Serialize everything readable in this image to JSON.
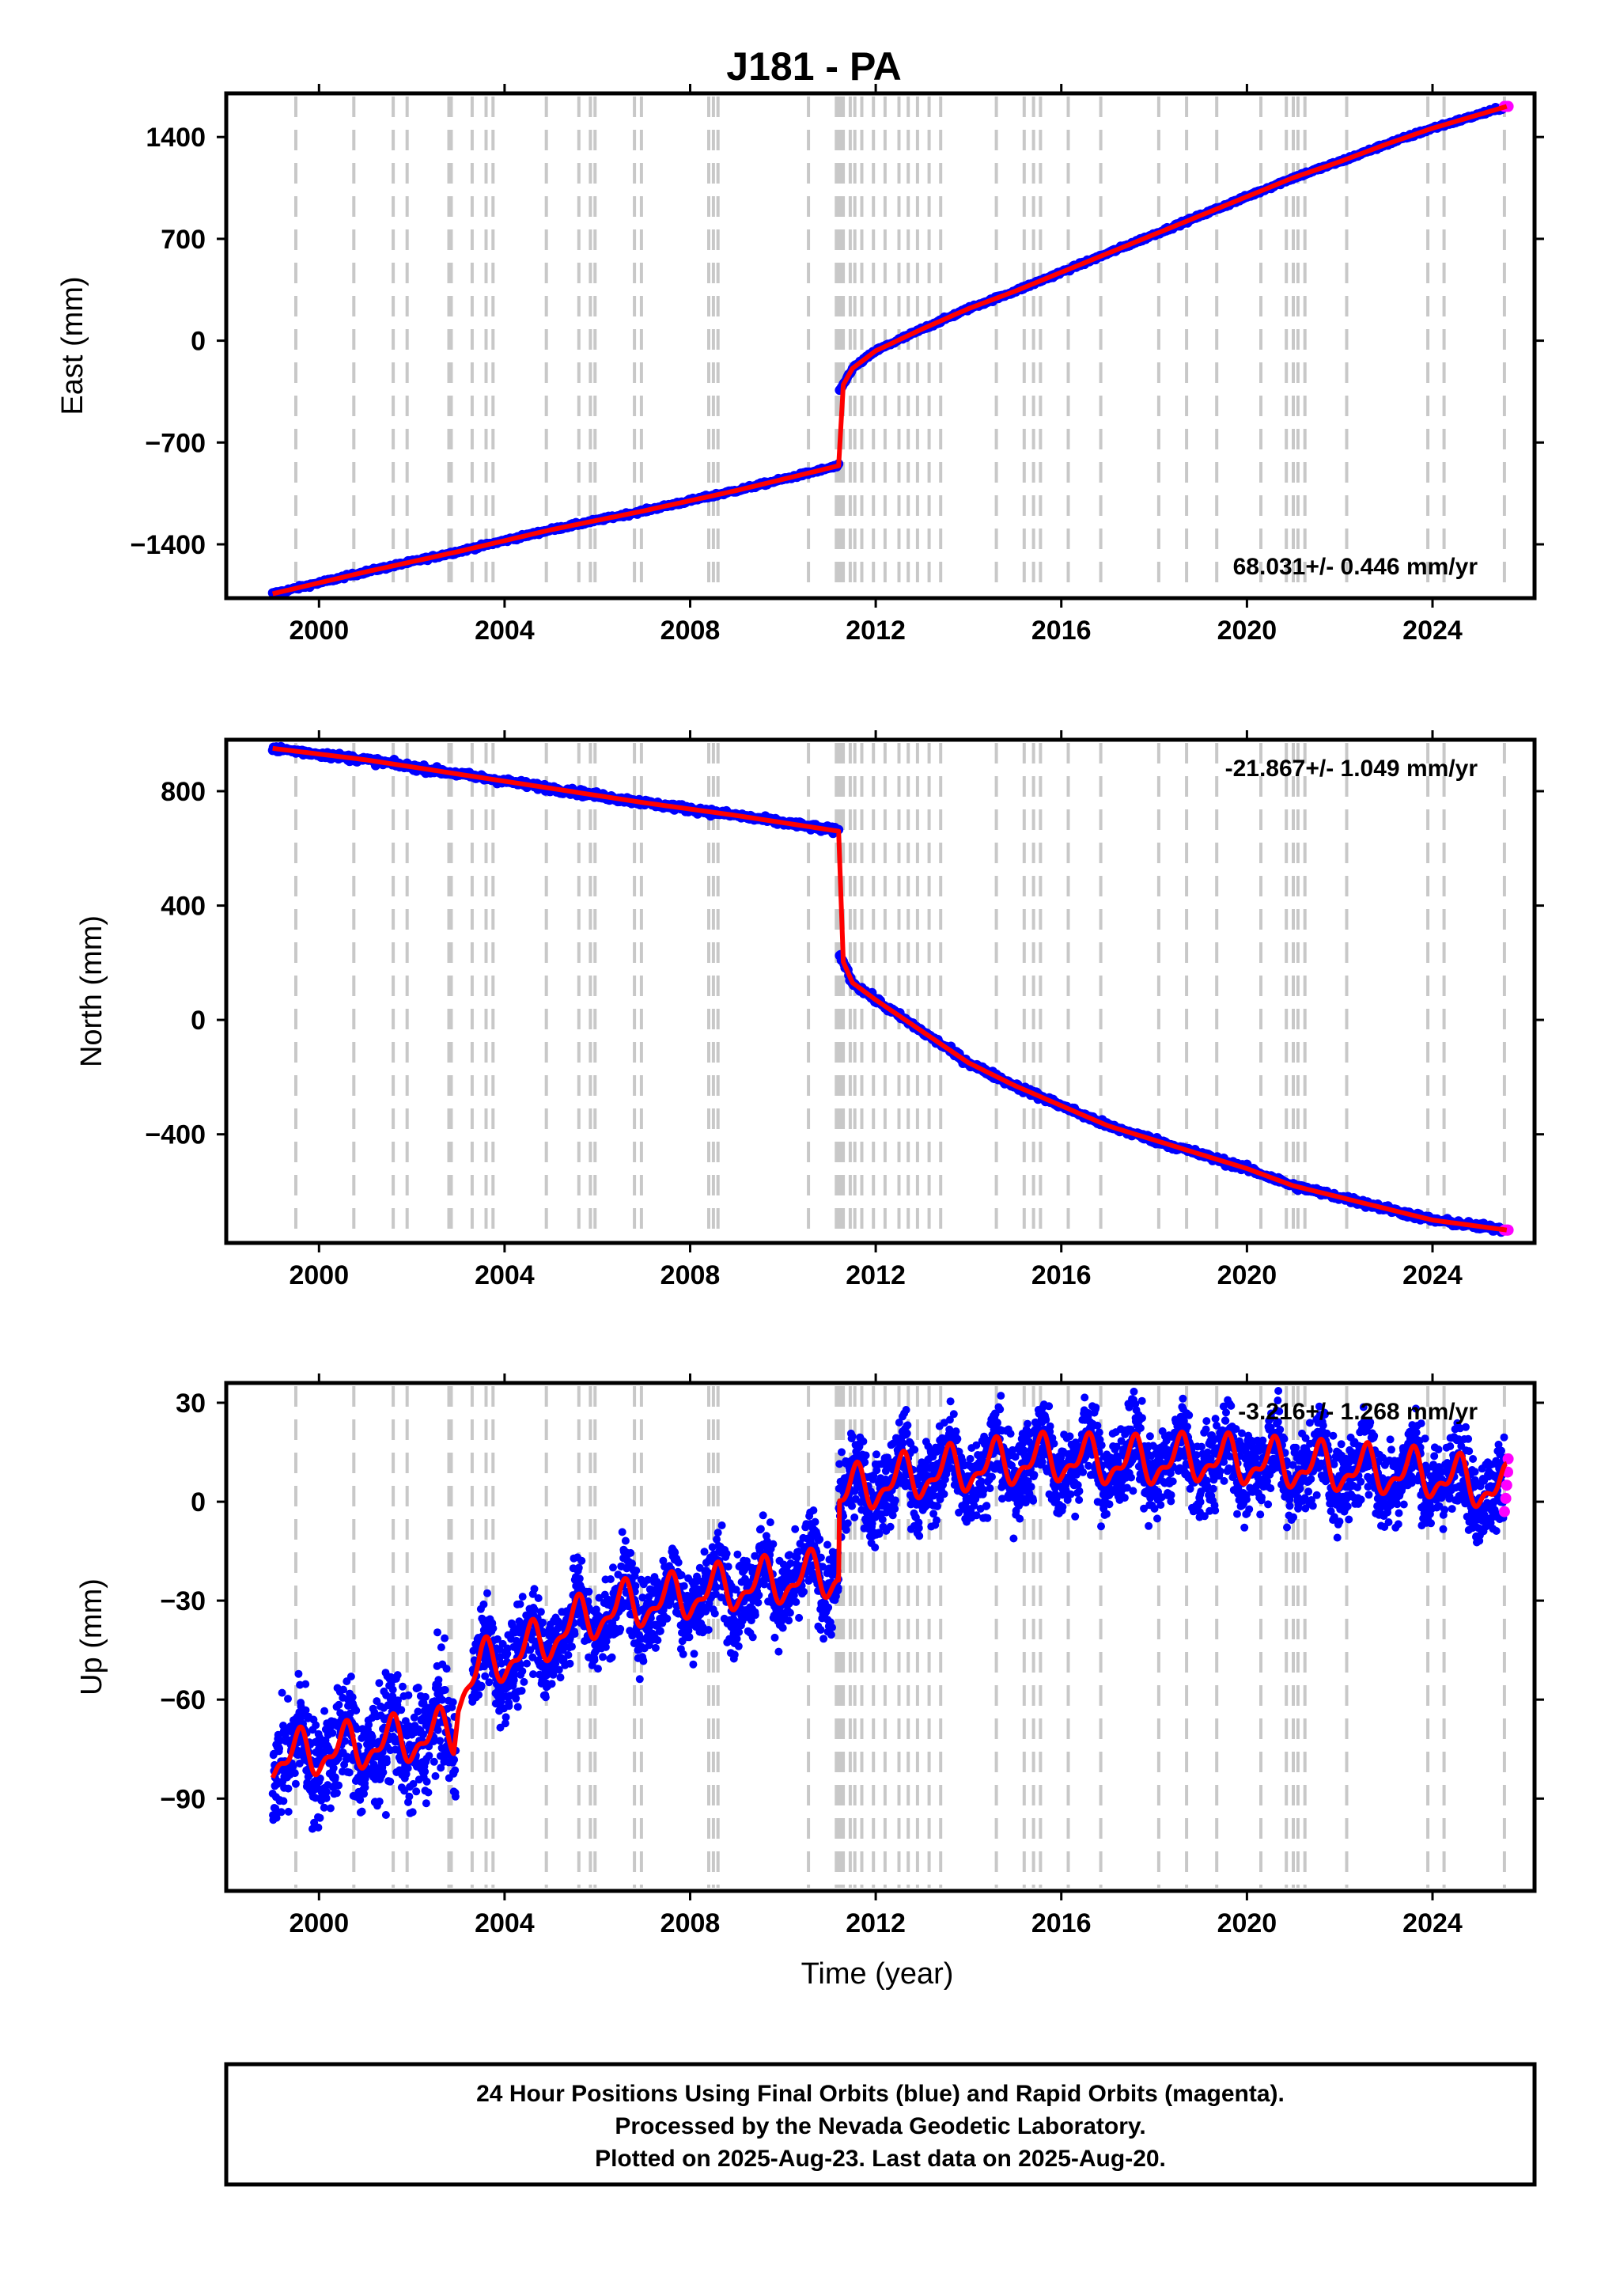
{
  "chart_data": {
    "type": "scatter",
    "title": "J181 - PA",
    "xlabel": "Time (year)",
    "xlim": [
      1998.0,
      2026.2
    ],
    "x_ticks": [
      "2000",
      "2004",
      "2008",
      "2012",
      "2016",
      "2020",
      "2024"
    ],
    "x_tick_values": [
      2000,
      2004,
      2008,
      2012,
      2016,
      2020,
      2024
    ],
    "grid": false,
    "series_colors": {
      "final_orbits": "#0000ff",
      "rapid_orbits": "#ff00ff",
      "model": "#ff0000",
      "steps": "#c8c8c8"
    },
    "step_epochs": [
      1999.5,
      2000.75,
      2001.6,
      2001.9,
      2002.8,
      2002.85,
      2003.3,
      2003.6,
      2003.75,
      2004.9,
      2005.6,
      2005.85,
      2005.95,
      2006.8,
      2006.95,
      2008.4,
      2008.5,
      2008.6,
      2010.55,
      2011.15,
      2011.2,
      2011.25,
      2011.3,
      2011.45,
      2011.55,
      2011.7,
      2011.95,
      2012.2,
      2012.5,
      2012.7,
      2012.9,
      2013.15,
      2013.4,
      2014.6,
      2015.2,
      2015.4,
      2015.55,
      2016.15,
      2016.85,
      2018.1,
      2018.7,
      2019.35,
      2020.3,
      2020.85,
      2021.0,
      2021.1,
      2021.25,
      2022.15,
      2023.9,
      2024.25,
      2025.55
    ],
    "panels": [
      {
        "ylabel": "East (mm)",
        "ylim": [
          -1770,
          1700
        ],
        "y_ticks": [
          "1400",
          "700",
          "0",
          "−700",
          "−1400"
        ],
        "y_tick_values": [
          1400,
          700,
          0,
          -700,
          -1400
        ],
        "rate_label": "68.031+/- 0.446 mm/yr",
        "x": [
          1999.0,
          2001.0,
          2003.0,
          2005.0,
          2007.0,
          2009.0,
          2011.2,
          2011.2,
          2011.5,
          2012.0,
          2013.0,
          2014.0,
          2015.0,
          2016.0,
          2017.0,
          2018.0,
          2019.0,
          2020.0,
          2021.0,
          2022.0,
          2023.0,
          2024.0,
          2025.6
        ],
        "y": [
          -1740,
          -1590,
          -1450,
          -1300,
          -1170,
          -1030,
          -860,
          -360,
          -190,
          -70,
          80,
          220,
          340,
          470,
          600,
          730,
          860,
          990,
          1120,
          1230,
          1350,
          1460,
          1610
        ]
      },
      {
        "ylabel": "North (mm)",
        "ylim": [
          -780,
          980
        ],
        "y_ticks": [
          "800",
          "400",
          "0",
          "−400"
        ],
        "y_tick_values": [
          800,
          400,
          0,
          -400
        ],
        "rate_label": "-21.867+/- 1.049 mm/yr",
        "x": [
          1999.0,
          2001.0,
          2003.0,
          2005.0,
          2007.0,
          2009.0,
          2011.2,
          2011.2,
          2011.5,
          2012.0,
          2013.0,
          2014.0,
          2015.0,
          2016.0,
          2017.0,
          2018.0,
          2019.0,
          2020.0,
          2021.0,
          2022.0,
          2023.0,
          2024.0,
          2025.6
        ],
        "y": [
          950,
          910,
          860,
          810,
          760,
          715,
          660,
          240,
          130,
          70,
          -40,
          -150,
          -230,
          -300,
          -370,
          -420,
          -470,
          -520,
          -580,
          -620,
          -660,
          -700,
          -735
        ]
      },
      {
        "ylabel": "Up (mm)",
        "ylim": [
          -118,
          36
        ],
        "y_ticks": [
          "30",
          "0",
          "−30",
          "−60",
          "−90"
        ],
        "y_tick_values": [
          30,
          0,
          -30,
          -60,
          -90
        ],
        "rate_label": "-3.216+/- 1.268 mm/yr",
        "x": [
          1999.0,
          2000.0,
          2001.0,
          2002.0,
          2002.9,
          2003.0,
          2003.5,
          2004.5,
          2005.5,
          2006.5,
          2007.5,
          2008.5,
          2009.5,
          2010.5,
          2011.2,
          2011.2,
          2012.0,
          2013.0,
          2014.0,
          2015.0,
          2016.0,
          2017.0,
          2018.0,
          2019.0,
          2020.0,
          2021.0,
          2022.0,
          2023.0,
          2024.0,
          2025.0,
          2025.6
        ],
        "y": [
          -78,
          -76,
          -74,
          -72,
          -70,
          -58,
          -50,
          -45,
          -37,
          -32,
          -30,
          -27,
          -25,
          -23,
          -22,
          2,
          5,
          8,
          10,
          12,
          13,
          12,
          12,
          13,
          12,
          11,
          10,
          9,
          8,
          5,
          3
        ]
      }
    ]
  },
  "footer": {
    "line1": "24 Hour Positions Using Final Orbits (blue) and Rapid Orbits (magenta).",
    "line2": "Processed by the Nevada Geodetic Laboratory.",
    "line3": "Plotted on 2025-Aug-23. Last data on 2025-Aug-20."
  }
}
